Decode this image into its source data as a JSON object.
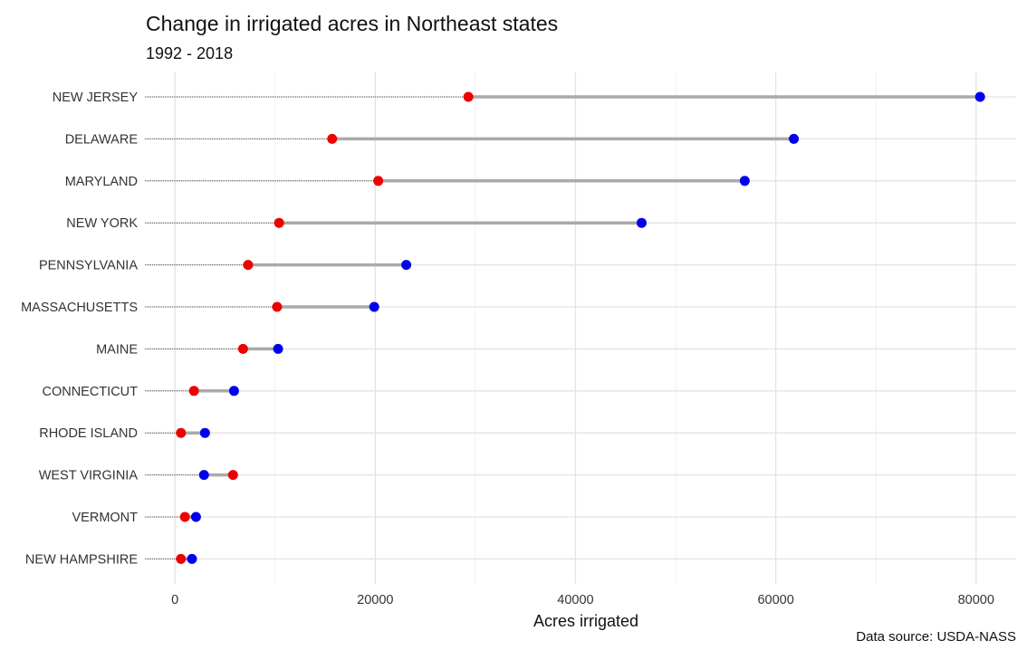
{
  "title": "Change in irrigated acres in Northeast states",
  "subtitle": "1992 - 2018",
  "caption": "Data source: USDA-NASS",
  "chart_data": {
    "type": "dumbbell",
    "xlabel": "Acres irrigated",
    "ylabel": "",
    "xlim": [
      -3000,
      84000
    ],
    "x_ticks": [
      0,
      20000,
      40000,
      60000,
      80000
    ],
    "grid": true,
    "categories": [
      "NEW JERSEY",
      "DELAWARE",
      "MARYLAND",
      "NEW YORK",
      "PENNSYLVANIA",
      "MASSACHUSETTS",
      "MAINE",
      "CONNECTICUT",
      "RHODE ISLAND",
      "WEST VIRGINIA",
      "VERMONT",
      "NEW HAMPSHIRE"
    ],
    "series": [
      {
        "color": "#ee0000",
        "values": [
          29300,
          15700,
          20300,
          10400,
          7300,
          10200,
          6800,
          1900,
          600,
          5800,
          1000,
          600
        ]
      },
      {
        "color": "#0000ee",
        "values": [
          80400,
          61800,
          56900,
          46600,
          23100,
          19900,
          10300,
          5900,
          3000,
          2900,
          2100,
          1700
        ]
      }
    ],
    "segment_color": "#aaaaaa",
    "leader_line": "dotted"
  }
}
